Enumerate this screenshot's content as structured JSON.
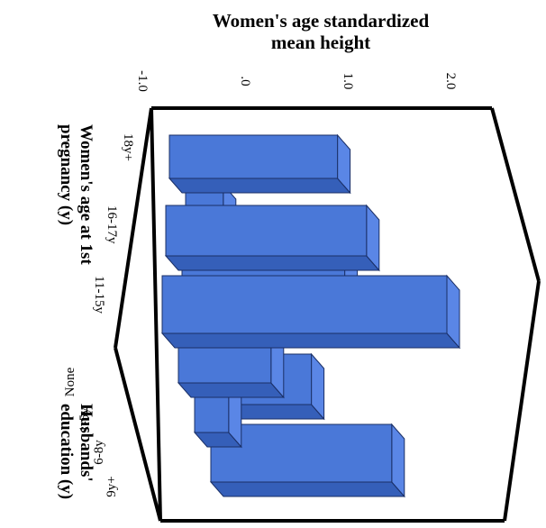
{
  "chart_data": {
    "type": "bar",
    "variant": "3d-bar",
    "title_lines": [
      "Women's age standardized",
      "mean height"
    ],
    "value_axis_ticks": [
      "-1.0",
      ".0",
      "1.0",
      "2.0"
    ],
    "value_range": [
      -1.0,
      2.3
    ],
    "xlabel_lines": [
      "Women's age at 1st",
      "pregnancy (y)"
    ],
    "ylabel_lines": [
      "Husbands'",
      "education (y)"
    ],
    "row_categories": [
      "18y+",
      "16-17y",
      "11-15y"
    ],
    "col_categories": [
      "None",
      "1-5y",
      "6-8y",
      "9y+"
    ],
    "values": [
      [
        0.9,
        -0.3,
        -0.1,
        0.1
      ],
      [
        1.2,
        0.9,
        -0.1,
        0.4
      ],
      [
        2.0,
        0.2,
        -0.3,
        1.2
      ]
    ],
    "colors": {
      "front": "#4a78d8",
      "top": "#355fb9",
      "side": "#5a86e6",
      "edge": "#1a2f66"
    }
  }
}
